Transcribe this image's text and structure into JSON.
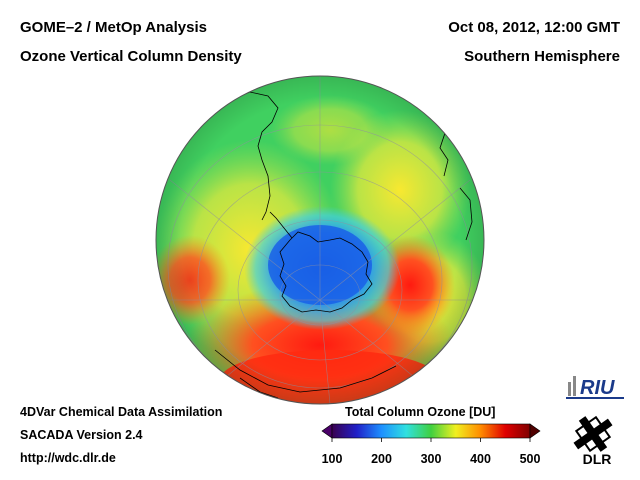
{
  "header": {
    "title_left": "GOME–2 / MetOp Analysis",
    "subtitle_left": "Ozone Vertical Column Density",
    "title_right": "Oct 08, 2012, 12:00 GMT",
    "subtitle_right": "Southern Hemisphere"
  },
  "footer": {
    "line1": "4DVar Chemical Data Assimilation",
    "line2": "SACADA Version 2.4",
    "line3": "http://wdc.dlr.de"
  },
  "colorbar": {
    "title": "Total Column Ozone [DU]",
    "ticks": [
      "100",
      "200",
      "300",
      "400",
      "500"
    ],
    "min": 100,
    "max": 500,
    "colors": [
      "#3a0050",
      "#2020c8",
      "#1e90ff",
      "#30e0e0",
      "#40d040",
      "#f0f020",
      "#ff8c00",
      "#e00000",
      "#800000"
    ]
  },
  "logos": {
    "riu": "RIU",
    "dlr": "DLR"
  },
  "map": {
    "projection": "orthographic-south-polar",
    "field": "total-column-ozone",
    "colors": {
      "hole": "#1a6ee8",
      "mid": "#38d060",
      "collar": "#ff2a10",
      "high": "#f0e030",
      "coast": "#000000"
    }
  }
}
